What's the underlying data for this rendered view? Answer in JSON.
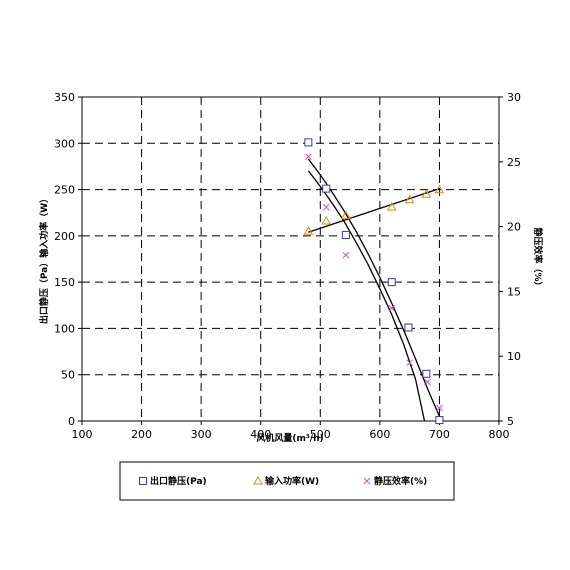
{
  "chart_data": {
    "type": "scatter",
    "title": "",
    "xlabel": "风机风量(m³/h)",
    "ylabel": "出口静压（Pa）输入功率（W）",
    "y2label": "静压效率（%）",
    "xlim": [
      100,
      800
    ],
    "ylim": [
      0,
      350
    ],
    "y2lim": [
      5,
      30
    ],
    "xticks": [
      "100",
      "200",
      "300",
      "400",
      "500",
      "600",
      "700",
      "800"
    ],
    "yticks": [
      "0",
      "50",
      "100",
      "150",
      "200",
      "250",
      "300",
      "350"
    ],
    "y2ticks": [
      "5",
      "10",
      "15",
      "20",
      "25",
      "30"
    ],
    "grid": true,
    "legend": "bottom",
    "series": [
      {
        "name": "出口静压(Pa)",
        "axis": "left",
        "marker": "square",
        "color": "#3b3b9a",
        "x": [
          480,
          510,
          543,
          620,
          648,
          678,
          700
        ],
        "y": [
          301,
          251,
          201,
          150,
          101,
          51,
          1
        ]
      },
      {
        "name": "输入功率(W)",
        "axis": "left",
        "marker": "triangle",
        "color": "#e08a1e",
        "x": [
          480,
          510,
          543,
          620,
          650,
          678,
          700
        ],
        "y": [
          205,
          216,
          222,
          231,
          239,
          245,
          250
        ]
      },
      {
        "name": "静压效率(%)",
        "axis": "right",
        "marker": "x",
        "color": "#d44fc7",
        "x": [
          480,
          510,
          543,
          620,
          650,
          680,
          700
        ],
        "y": [
          25.4,
          21.5,
          17.8,
          13.7,
          9.5,
          8.0,
          6.0
        ]
      }
    ],
    "fits": [
      {
        "axis": "left",
        "x": [
          480,
          500,
          520,
          540,
          560,
          580,
          600,
          620,
          640,
          660,
          680,
          700
        ],
        "y": [
          283,
          266,
          247,
          227,
          205,
          181,
          155,
          127,
          98,
          67,
          35,
          5
        ]
      },
      {
        "axis": "left",
        "x": [
          480,
          700
        ],
        "y": [
          204,
          251
        ]
      },
      {
        "axis": "right",
        "x": [
          480,
          500,
          520,
          540,
          560,
          580,
          600,
          620,
          640,
          660,
          675
        ],
        "y": [
          24.3,
          23.1,
          21.8,
          20.4,
          18.8,
          17.1,
          15.2,
          13.2,
          10.9,
          8.2,
          5.0
        ]
      }
    ]
  }
}
